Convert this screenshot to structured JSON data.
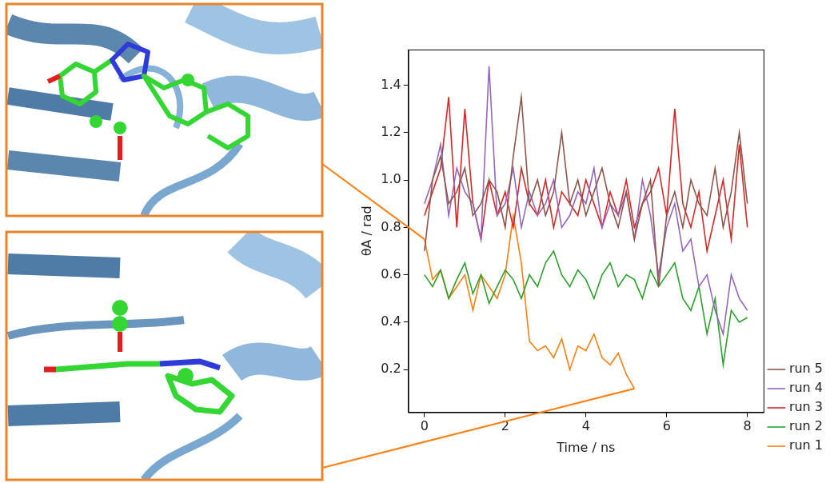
{
  "chart_data": {
    "type": "line",
    "x_label": "Time / ns",
    "y_label": "θA / rad",
    "x": [
      0,
      0.2,
      0.4,
      0.6,
      0.8,
      1,
      1.2,
      1.4,
      1.6,
      1.8,
      2,
      2.2,
      2.4,
      2.6,
      2.8,
      3,
      3.2,
      3.4,
      3.6,
      3.8,
      4,
      4.2,
      4.4,
      4.6,
      4.8,
      5,
      5.2,
      5.4,
      5.6,
      5.8,
      6,
      6.2,
      6.4,
      6.6,
      6.8,
      7,
      7.2,
      7.4,
      7.6,
      7.8,
      8
    ],
    "series": [
      {
        "name": "run 1",
        "color": "#ff7f0e",
        "values": [
          0.75,
          0.58,
          0.62,
          0.5,
          0.55,
          0.6,
          0.45,
          0.6,
          0.55,
          0.5,
          0.6,
          0.85,
          0.65,
          0.32,
          0.28,
          0.3,
          0.25,
          0.33,
          0.2,
          0.3,
          0.28,
          0.35,
          0.25,
          0.22,
          0.27,
          0.18,
          0.12,
          null,
          null,
          null,
          null,
          null,
          null,
          null,
          null,
          null,
          null,
          null,
          null,
          null,
          null
        ]
      },
      {
        "name": "run 2",
        "color": "#2ca02c",
        "values": [
          0.6,
          0.55,
          0.62,
          0.5,
          0.58,
          0.65,
          0.52,
          0.6,
          0.48,
          0.55,
          0.62,
          0.58,
          0.5,
          0.6,
          0.55,
          0.65,
          0.7,
          0.6,
          0.55,
          0.62,
          0.58,
          0.5,
          0.6,
          0.65,
          0.55,
          0.6,
          0.58,
          0.5,
          0.62,
          0.55,
          0.6,
          0.65,
          0.5,
          0.45,
          0.55,
          0.35,
          0.5,
          0.22,
          0.45,
          0.4,
          0.42
        ]
      },
      {
        "name": "run 3",
        "color": "#d62728",
        "values": [
          0.85,
          0.95,
          1.05,
          1.35,
          0.8,
          1.3,
          0.9,
          0.75,
          1.0,
          0.85,
          0.95,
          0.8,
          1.05,
          0.9,
          0.85,
          1.0,
          0.8,
          0.95,
          0.9,
          0.85,
          1.0,
          0.9,
          0.8,
          0.95,
          0.85,
          1.0,
          0.8,
          0.9,
          0.95,
          1.05,
          0.85,
          1.3,
          0.9,
          0.8,
          0.95,
          0.7,
          0.85,
          1.0,
          0.75,
          1.15,
          0.8
        ]
      },
      {
        "name": "run 4",
        "color": "#9467bd",
        "values": [
          0.9,
          1.0,
          1.15,
          0.85,
          1.05,
          0.95,
          0.9,
          0.75,
          1.48,
          0.85,
          0.9,
          1.05,
          0.8,
          0.95,
          0.85,
          0.9,
          1.0,
          0.8,
          0.85,
          0.95,
          0.9,
          1.05,
          0.8,
          0.9,
          0.85,
          0.95,
          0.75,
          1.0,
          0.85,
          0.6,
          0.8,
          0.9,
          0.7,
          0.75,
          0.55,
          0.6,
          0.45,
          0.35,
          0.6,
          0.5,
          0.45
        ]
      },
      {
        "name": "run 5",
        "color": "#8c564b",
        "values": [
          0.7,
          1.0,
          1.1,
          0.9,
          0.95,
          1.05,
          0.85,
          0.9,
          1.0,
          0.95,
          0.8,
          1.1,
          1.35,
          0.9,
          1.0,
          0.85,
          0.95,
          1.2,
          0.9,
          1.0,
          0.85,
          0.95,
          1.05,
          0.9,
          0.8,
          0.95,
          0.75,
          0.9,
          1.0,
          0.55,
          0.85,
          0.95,
          0.8,
          1.0,
          0.9,
          0.85,
          1.05,
          0.8,
          0.95,
          1.2,
          0.9
        ]
      }
    ],
    "xlim": [
      -0.4,
      8.4
    ],
    "xticks": [
      0,
      2,
      4,
      6,
      8
    ],
    "ylim": [
      0.02,
      1.55
    ],
    "yticks": [
      0.2,
      0.4,
      0.6,
      0.8,
      {
        "value": 1,
        "label": "1.0"
      },
      1.2,
      1.4
    ],
    "grid": false,
    "legend": "right",
    "marker": "none",
    "line_style": "solid"
  }
}
